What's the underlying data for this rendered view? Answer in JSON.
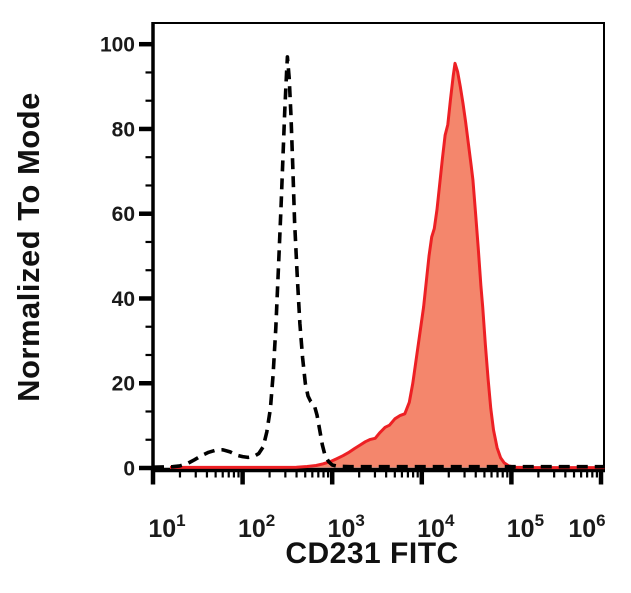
{
  "y_axis": {
    "label": "Normalized To Mode",
    "ticks": [
      "0",
      "20",
      "40",
      "60",
      "80",
      "100"
    ],
    "tick_values": [
      0,
      20,
      40,
      60,
      80,
      100
    ],
    "range": [
      0,
      105
    ],
    "minor_ticks_per_interval": 2
  },
  "x_axis": {
    "label": "CD231 FITC",
    "scale": "log10",
    "tick_base": "10",
    "tick_exponents": [
      "1",
      "2",
      "3",
      "4",
      "5",
      "6"
    ],
    "decade_range": [
      1,
      6
    ]
  },
  "colors": {
    "axis": "#000000",
    "control_line": "#000000",
    "stained_line": "#ed2024",
    "stained_fill": "#f4866c",
    "background": "#ffffff"
  },
  "chart_data": {
    "type": "area",
    "title": "",
    "xlabel": "CD231 FITC",
    "ylabel": "Normalized To Mode",
    "x_scale": "log10",
    "xlim": [
      10,
      1000000
    ],
    "ylim": [
      0,
      105
    ],
    "grid": false,
    "legend": "none",
    "series": [
      {
        "id": "red-filled",
        "description": "solid red filled histogram, mode ~2.3e4, peak height ~95",
        "line": "solid",
        "color": "#ed2024",
        "fill": "#f4866c",
        "stroke_width": 3,
        "points_log10x_y": [
          [
            1.19,
            0.15
          ],
          [
            1.6,
            0.15
          ],
          [
            2.0,
            0.15
          ],
          [
            2.4,
            0.15
          ],
          [
            2.6,
            0.2
          ],
          [
            2.72,
            0.35
          ],
          [
            2.82,
            0.6
          ],
          [
            2.9,
            1.0
          ],
          [
            2.98,
            1.5
          ],
          [
            3.05,
            2.2
          ],
          [
            3.12,
            2.9
          ],
          [
            3.18,
            3.6
          ],
          [
            3.25,
            4.6
          ],
          [
            3.31,
            5.4
          ],
          [
            3.37,
            6.2
          ],
          [
            3.42,
            6.7
          ],
          [
            3.48,
            7.0
          ],
          [
            3.53,
            8.3
          ],
          [
            3.59,
            9.6
          ],
          [
            3.64,
            10.1
          ],
          [
            3.7,
            11.6
          ],
          [
            3.76,
            12.4
          ],
          [
            3.81,
            12.8
          ],
          [
            3.86,
            15.5
          ],
          [
            3.9,
            20
          ],
          [
            3.94,
            26
          ],
          [
            3.98,
            32
          ],
          [
            4.02,
            38
          ],
          [
            4.05,
            44
          ],
          [
            4.08,
            50
          ],
          [
            4.11,
            54.5
          ],
          [
            4.14,
            56.5
          ],
          [
            4.17,
            61
          ],
          [
            4.2,
            67
          ],
          [
            4.23,
            73
          ],
          [
            4.26,
            78.5
          ],
          [
            4.29,
            81
          ],
          [
            4.32,
            87
          ],
          [
            4.35,
            92.5
          ],
          [
            4.37,
            95.5
          ],
          [
            4.4,
            93.5
          ],
          [
            4.43,
            90
          ],
          [
            4.46,
            86
          ],
          [
            4.49,
            81.5
          ],
          [
            4.52,
            76.5
          ],
          [
            4.55,
            71.5
          ],
          [
            4.57,
            68
          ],
          [
            4.6,
            60
          ],
          [
            4.63,
            52
          ],
          [
            4.66,
            43
          ],
          [
            4.68,
            38
          ],
          [
            4.71,
            29
          ],
          [
            4.74,
            21
          ],
          [
            4.77,
            14
          ],
          [
            4.8,
            9
          ],
          [
            4.84,
            4.8
          ],
          [
            4.88,
            2.4
          ],
          [
            4.92,
            1.2
          ],
          [
            4.97,
            0.5
          ],
          [
            5.04,
            0.2
          ],
          [
            5.15,
            0.12
          ],
          [
            5.5,
            0.1
          ],
          [
            6.04,
            0.1
          ]
        ]
      },
      {
        "id": "black-dashed",
        "description": "black dashed unfilled histogram, mode ~3e2, peak height ~97",
        "line": "dashed",
        "color": "#000000",
        "fill": "none",
        "stroke_width": 3.6,
        "points_log10x_y": [
          [
            1.0,
            0.2
          ],
          [
            1.12,
            0.25
          ],
          [
            1.22,
            0.3
          ],
          [
            1.3,
            0.5
          ],
          [
            1.38,
            1.0
          ],
          [
            1.46,
            1.9
          ],
          [
            1.54,
            2.9
          ],
          [
            1.62,
            3.7
          ],
          [
            1.7,
            4.2
          ],
          [
            1.78,
            4.3
          ],
          [
            1.86,
            3.8
          ],
          [
            1.94,
            3.0
          ],
          [
            2.0,
            2.7
          ],
          [
            2.06,
            2.5
          ],
          [
            2.12,
            2.7
          ],
          [
            2.18,
            3.4
          ],
          [
            2.23,
            5.0
          ],
          [
            2.27,
            8.5
          ],
          [
            2.31,
            14
          ],
          [
            2.34,
            22
          ],
          [
            2.37,
            33
          ],
          [
            2.4,
            47
          ],
          [
            2.43,
            62
          ],
          [
            2.45,
            73
          ],
          [
            2.47,
            84
          ],
          [
            2.49,
            93
          ],
          [
            2.5,
            97
          ],
          [
            2.52,
            92
          ],
          [
            2.54,
            83
          ],
          [
            2.56,
            71
          ],
          [
            2.58,
            58
          ],
          [
            2.61,
            45
          ],
          [
            2.64,
            34
          ],
          [
            2.67,
            26
          ],
          [
            2.7,
            20
          ],
          [
            2.73,
            17
          ],
          [
            2.76,
            15.7
          ],
          [
            2.8,
            14.8
          ],
          [
            2.83,
            12.5
          ],
          [
            2.86,
            9.0
          ],
          [
            2.89,
            5.5
          ],
          [
            2.92,
            3.0
          ],
          [
            2.96,
            1.5
          ],
          [
            3.0,
            0.7
          ],
          [
            3.06,
            0.4
          ],
          [
            3.2,
            0.3
          ],
          [
            3.6,
            0.3
          ],
          [
            4.0,
            0.3
          ],
          [
            4.4,
            0.3
          ],
          [
            4.8,
            0.3
          ],
          [
            5.2,
            0.3
          ],
          [
            5.6,
            0.3
          ],
          [
            6.04,
            0.3
          ]
        ]
      }
    ]
  }
}
